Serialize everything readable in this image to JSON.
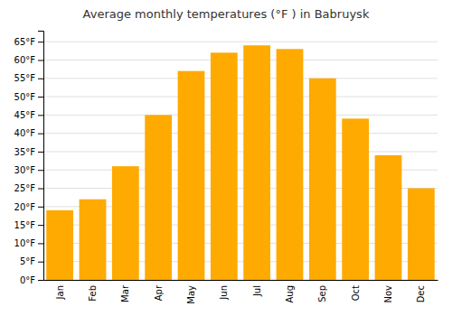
{
  "chart_data": {
    "type": "bar",
    "title": "Average monthly temperatures (°F ) in Babruysk",
    "categories": [
      "Jan",
      "Feb",
      "Mar",
      "Apr",
      "May",
      "Jun",
      "Jul",
      "Aug",
      "Sep",
      "Oct",
      "Nov",
      "Dec"
    ],
    "values": [
      19,
      22,
      31,
      45,
      57,
      62,
      64,
      63,
      55,
      44,
      34,
      25
    ],
    "color": "#FFAA00",
    "ylim": [
      0,
      68
    ],
    "yticks": [
      {
        "value": 0,
        "label": "0°F"
      },
      {
        "value": 5,
        "label": "5°F"
      },
      {
        "value": 10,
        "label": "10°F"
      },
      {
        "value": 15,
        "label": "15°F"
      },
      {
        "value": 20,
        "label": "20°F"
      },
      {
        "value": 25,
        "label": "25°F"
      },
      {
        "value": 30,
        "label": "30°F"
      },
      {
        "value": 35,
        "label": "35°F"
      },
      {
        "value": 40,
        "label": "40°F"
      },
      {
        "value": 45,
        "label": "45°F"
      },
      {
        "value": 50,
        "label": "50°F"
      },
      {
        "value": 55,
        "label": "55°F"
      },
      {
        "value": 60,
        "label": "60°F"
      },
      {
        "value": 65,
        "label": "65°F"
      }
    ],
    "grid": true
  }
}
